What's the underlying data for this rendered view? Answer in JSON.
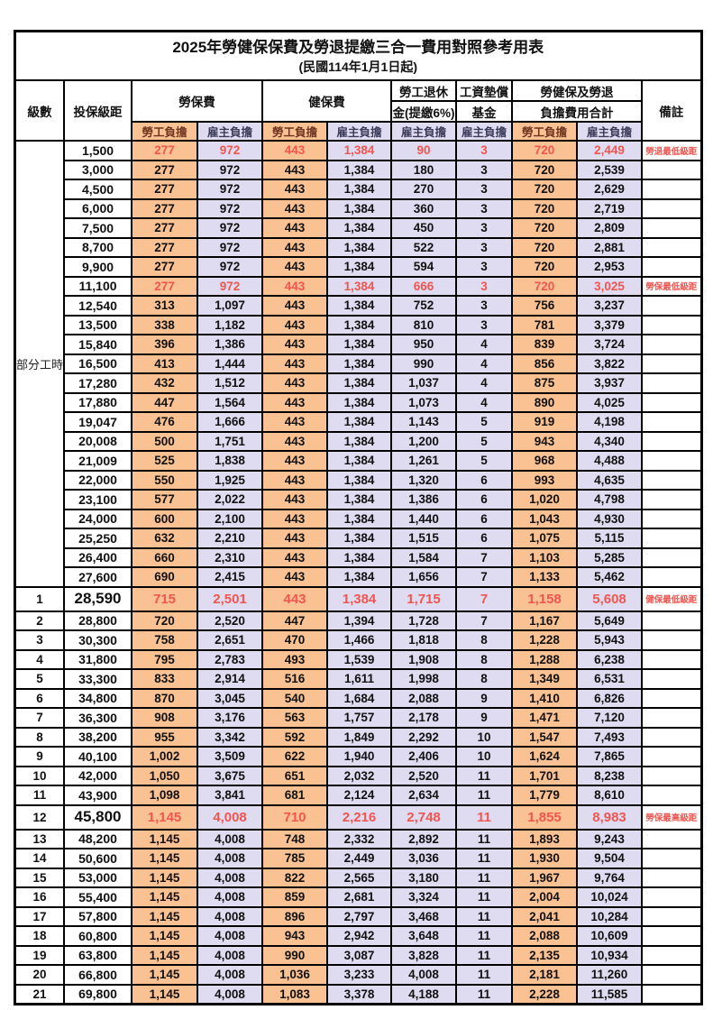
{
  "title": "2025年勞健保保費及勞退提繳三合一費用對照參考用表",
  "subtitle": "(民國114年1月1日起)",
  "header": {
    "level": "級數",
    "bracket": "投保級距",
    "labor_fee": "勞保費",
    "health_fee": "健保費",
    "pension_top": "勞工退休",
    "pension_bottom": "金(提繳6%)",
    "wage_fund_top": "工資墊償",
    "wage_fund_bottom": "基金",
    "total_top": "勞健保及勞退",
    "total_bottom": "負擔費用合計",
    "remarks": "備註",
    "employee_share": "勞工負擔",
    "employer_share": "雇主負擔"
  },
  "part_time_label": "部分工時",
  "part_time_rowspan": 23,
  "colors": {
    "employee_bg": "#fac192",
    "employer_bg": "#dfdbf1",
    "red_text": "#f1554f",
    "employee_header_text": "#6d3420",
    "employer_header_text": "#3a3a58"
  },
  "rows": [
    {
      "level": "",
      "bracket": "1,500",
      "values": [
        "277",
        "972",
        "443",
        "1,384",
        "90",
        "3",
        "720",
        "2,449"
      ],
      "red": true,
      "note": "勞退最低級距"
    },
    {
      "level": "",
      "bracket": "3,000",
      "values": [
        "277",
        "972",
        "443",
        "1,384",
        "180",
        "3",
        "720",
        "2,539"
      ]
    },
    {
      "level": "",
      "bracket": "4,500",
      "values": [
        "277",
        "972",
        "443",
        "1,384",
        "270",
        "3",
        "720",
        "2,629"
      ]
    },
    {
      "level": "",
      "bracket": "6,000",
      "values": [
        "277",
        "972",
        "443",
        "1,384",
        "360",
        "3",
        "720",
        "2,719"
      ]
    },
    {
      "level": "",
      "bracket": "7,500",
      "values": [
        "277",
        "972",
        "443",
        "1,384",
        "450",
        "3",
        "720",
        "2,809"
      ]
    },
    {
      "level": "",
      "bracket": "8,700",
      "values": [
        "277",
        "972",
        "443",
        "1,384",
        "522",
        "3",
        "720",
        "2,881"
      ]
    },
    {
      "level": "",
      "bracket": "9,900",
      "values": [
        "277",
        "972",
        "443",
        "1,384",
        "594",
        "3",
        "720",
        "2,953"
      ]
    },
    {
      "level": "",
      "bracket": "11,100",
      "values": [
        "277",
        "972",
        "443",
        "1,384",
        "666",
        "3",
        "720",
        "3,025"
      ],
      "red": true,
      "note": "勞保最低級距"
    },
    {
      "level": "",
      "bracket": "12,540",
      "values": [
        "313",
        "1,097",
        "443",
        "1,384",
        "752",
        "3",
        "756",
        "3,237"
      ]
    },
    {
      "level": "",
      "bracket": "13,500",
      "values": [
        "338",
        "1,182",
        "443",
        "1,384",
        "810",
        "3",
        "781",
        "3,379"
      ]
    },
    {
      "level": "",
      "bracket": "15,840",
      "values": [
        "396",
        "1,386",
        "443",
        "1,384",
        "950",
        "4",
        "839",
        "3,724"
      ]
    },
    {
      "level": "",
      "bracket": "16,500",
      "values": [
        "413",
        "1,444",
        "443",
        "1,384",
        "990",
        "4",
        "856",
        "3,822"
      ]
    },
    {
      "level": "",
      "bracket": "17,280",
      "values": [
        "432",
        "1,512",
        "443",
        "1,384",
        "1,037",
        "4",
        "875",
        "3,937"
      ]
    },
    {
      "level": "",
      "bracket": "17,880",
      "values": [
        "447",
        "1,564",
        "443",
        "1,384",
        "1,073",
        "4",
        "890",
        "4,025"
      ]
    },
    {
      "level": "",
      "bracket": "19,047",
      "values": [
        "476",
        "1,666",
        "443",
        "1,384",
        "1,143",
        "5",
        "919",
        "4,198"
      ]
    },
    {
      "level": "",
      "bracket": "20,008",
      "values": [
        "500",
        "1,751",
        "443",
        "1,384",
        "1,200",
        "5",
        "943",
        "4,340"
      ]
    },
    {
      "level": "",
      "bracket": "21,009",
      "values": [
        "525",
        "1,838",
        "443",
        "1,384",
        "1,261",
        "5",
        "968",
        "4,488"
      ]
    },
    {
      "level": "",
      "bracket": "22,000",
      "values": [
        "550",
        "1,925",
        "443",
        "1,384",
        "1,320",
        "6",
        "993",
        "4,635"
      ]
    },
    {
      "level": "",
      "bracket": "23,100",
      "values": [
        "577",
        "2,022",
        "443",
        "1,384",
        "1,386",
        "6",
        "1,020",
        "4,798"
      ]
    },
    {
      "level": "",
      "bracket": "24,000",
      "values": [
        "600",
        "2,100",
        "443",
        "1,384",
        "1,440",
        "6",
        "1,043",
        "4,930"
      ]
    },
    {
      "level": "",
      "bracket": "25,250",
      "values": [
        "632",
        "2,210",
        "443",
        "1,384",
        "1,515",
        "6",
        "1,075",
        "5,115"
      ]
    },
    {
      "level": "",
      "bracket": "26,400",
      "values": [
        "660",
        "2,310",
        "443",
        "1,384",
        "1,584",
        "7",
        "1,103",
        "5,285"
      ]
    },
    {
      "level": "",
      "bracket": "27,600",
      "values": [
        "690",
        "2,415",
        "443",
        "1,384",
        "1,656",
        "7",
        "1,133",
        "5,462"
      ]
    },
    {
      "level": "1",
      "bracket": "28,590",
      "values": [
        "715",
        "2,501",
        "443",
        "1,384",
        "1,715",
        "7",
        "1,158",
        "5,608"
      ],
      "red": true,
      "big": true,
      "note": "健保最低級距"
    },
    {
      "level": "2",
      "bracket": "28,800",
      "values": [
        "720",
        "2,520",
        "447",
        "1,394",
        "1,728",
        "7",
        "1,167",
        "5,649"
      ]
    },
    {
      "level": "3",
      "bracket": "30,300",
      "values": [
        "758",
        "2,651",
        "470",
        "1,466",
        "1,818",
        "8",
        "1,228",
        "5,943"
      ]
    },
    {
      "level": "4",
      "bracket": "31,800",
      "values": [
        "795",
        "2,783",
        "493",
        "1,539",
        "1,908",
        "8",
        "1,288",
        "6,238"
      ]
    },
    {
      "level": "5",
      "bracket": "33,300",
      "values": [
        "833",
        "2,914",
        "516",
        "1,611",
        "1,998",
        "8",
        "1,349",
        "6,531"
      ]
    },
    {
      "level": "6",
      "bracket": "34,800",
      "values": [
        "870",
        "3,045",
        "540",
        "1,684",
        "2,088",
        "9",
        "1,410",
        "6,826"
      ]
    },
    {
      "level": "7",
      "bracket": "36,300",
      "values": [
        "908",
        "3,176",
        "563",
        "1,757",
        "2,178",
        "9",
        "1,471",
        "7,120"
      ]
    },
    {
      "level": "8",
      "bracket": "38,200",
      "values": [
        "955",
        "3,342",
        "592",
        "1,849",
        "2,292",
        "10",
        "1,547",
        "7,493"
      ]
    },
    {
      "level": "9",
      "bracket": "40,100",
      "values": [
        "1,002",
        "3,509",
        "622",
        "1,940",
        "2,406",
        "10",
        "1,624",
        "7,865"
      ]
    },
    {
      "level": "10",
      "bracket": "42,000",
      "values": [
        "1,050",
        "3,675",
        "651",
        "2,032",
        "2,520",
        "11",
        "1,701",
        "8,238"
      ]
    },
    {
      "level": "11",
      "bracket": "43,900",
      "values": [
        "1,098",
        "3,841",
        "681",
        "2,124",
        "2,634",
        "11",
        "1,779",
        "8,610"
      ]
    },
    {
      "level": "12",
      "bracket": "45,800",
      "values": [
        "1,145",
        "4,008",
        "710",
        "2,216",
        "2,748",
        "11",
        "1,855",
        "8,983"
      ],
      "red": true,
      "big": true,
      "note": "勞保最高級距"
    },
    {
      "level": "13",
      "bracket": "48,200",
      "values": [
        "1,145",
        "4,008",
        "748",
        "2,332",
        "2,892",
        "11",
        "1,893",
        "9,243"
      ]
    },
    {
      "level": "14",
      "bracket": "50,600",
      "values": [
        "1,145",
        "4,008",
        "785",
        "2,449",
        "3,036",
        "11",
        "1,930",
        "9,504"
      ]
    },
    {
      "level": "15",
      "bracket": "53,000",
      "values": [
        "1,145",
        "4,008",
        "822",
        "2,565",
        "3,180",
        "11",
        "1,967",
        "9,764"
      ]
    },
    {
      "level": "16",
      "bracket": "55,400",
      "values": [
        "1,145",
        "4,008",
        "859",
        "2,681",
        "3,324",
        "11",
        "2,004",
        "10,024"
      ]
    },
    {
      "level": "17",
      "bracket": "57,800",
      "values": [
        "1,145",
        "4,008",
        "896",
        "2,797",
        "3,468",
        "11",
        "2,041",
        "10,284"
      ]
    },
    {
      "level": "18",
      "bracket": "60,800",
      "values": [
        "1,145",
        "4,008",
        "943",
        "2,942",
        "3,648",
        "11",
        "2,088",
        "10,609"
      ]
    },
    {
      "level": "19",
      "bracket": "63,800",
      "values": [
        "1,145",
        "4,008",
        "990",
        "3,087",
        "3,828",
        "11",
        "2,135",
        "10,934"
      ]
    },
    {
      "level": "20",
      "bracket": "66,800",
      "values": [
        "1,145",
        "4,008",
        "1,036",
        "3,233",
        "4,008",
        "11",
        "2,181",
        "11,260"
      ]
    },
    {
      "level": "21",
      "bracket": "69,800",
      "values": [
        "1,145",
        "4,008",
        "1,083",
        "3,378",
        "4,188",
        "11",
        "2,228",
        "11,585"
      ]
    }
  ]
}
